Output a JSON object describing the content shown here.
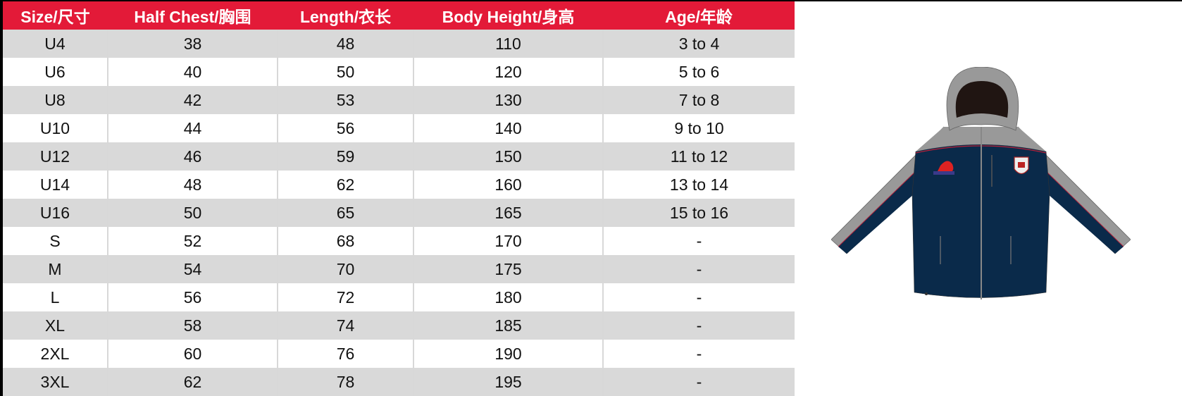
{
  "table": {
    "headers": [
      "Size/尺寸",
      "Half Chest/胸围",
      "Length/衣长",
      "Body Height/身高",
      "Age/年龄"
    ],
    "rows": [
      [
        "U4",
        "38",
        "48",
        "110",
        "3 to 4"
      ],
      [
        "U6",
        "40",
        "50",
        "120",
        "5 to 6"
      ],
      [
        "U8",
        "42",
        "53",
        "130",
        "7 to 8"
      ],
      [
        "U10",
        "44",
        "56",
        "140",
        "9 to 10"
      ],
      [
        "U12",
        "46",
        "59",
        "150",
        "11 to 12"
      ],
      [
        "U14",
        "48",
        "62",
        "160",
        "13 to 14"
      ],
      [
        "U16",
        "50",
        "65",
        "165",
        "15 to 16"
      ],
      [
        "S",
        "52",
        "68",
        "170",
        "-"
      ],
      [
        "M",
        "54",
        "70",
        "175",
        "-"
      ],
      [
        "L",
        "56",
        "72",
        "180",
        "-"
      ],
      [
        "XL",
        "58",
        "74",
        "185",
        "-"
      ],
      [
        "2XL",
        "60",
        "76",
        "190",
        "-"
      ],
      [
        "3XL",
        "62",
        "78",
        "195",
        "-"
      ]
    ]
  },
  "colors": {
    "header_bg": "#e31a38",
    "row_alt": "#d9d9d9",
    "jacket_body": "#0a2a4a",
    "jacket_shoulder": "#999999",
    "piping": "#b5213a"
  }
}
